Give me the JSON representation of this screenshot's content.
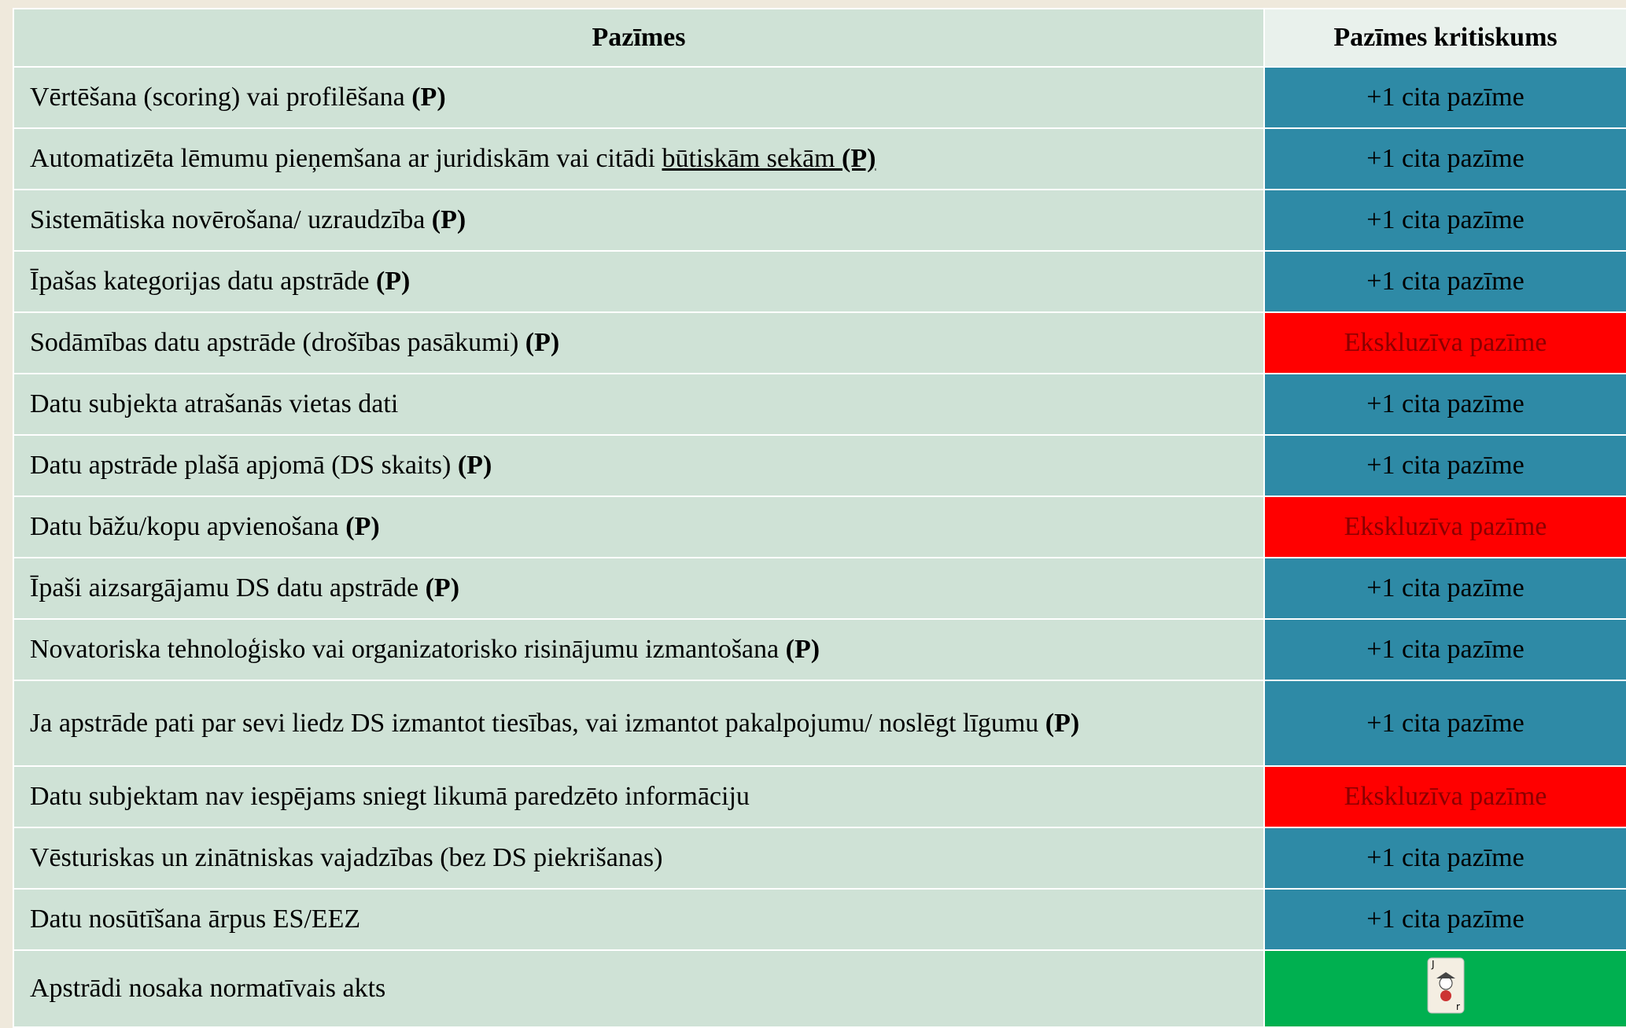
{
  "header": {
    "cells": [
      "Pazīmes",
      "Pazīmes kritiskums"
    ]
  },
  "rows": [
    {
      "parts": [
        {
          "text": "Vērtēšana (scoring) vai profilēšana "
        },
        {
          "text": "(P)",
          "bold": true
        }
      ],
      "criticality": "+1 cita pazīme",
      "fill": "#2e8aa6"
    },
    {
      "parts": [
        {
          "text": "Automatizēta lēmumu pieņemšana ar juridiskām vai citādi "
        },
        {
          "text": "būtiskām sekām ",
          "underline": true
        },
        {
          "text": "(P)",
          "bold": true,
          "underline": true
        }
      ],
      "criticality": "+1 cita pazīme",
      "fill": "#2e8aa6"
    },
    {
      "parts": [
        {
          "text": "Sistemātiska novērošana/ uzraudzība "
        },
        {
          "text": "(P)",
          "bold": true
        }
      ],
      "criticality": "+1 cita pazīme",
      "fill": "#2e8aa6"
    },
    {
      "parts": [
        {
          "text": "Īpašas kategorijas datu apstrāde "
        },
        {
          "text": "(P)",
          "bold": true
        }
      ],
      "criticality": "+1 cita pazīme",
      "fill": "#2e8aa6"
    },
    {
      "parts": [
        {
          "text": "Sodāmības datu apstrāde (drošības pasākumi) "
        },
        {
          "text": "(P)",
          "bold": true
        }
      ],
      "criticality": "Ekskluzīva pazīme",
      "fill": "#ff0000"
    },
    {
      "parts": [
        {
          "text": "Datu subjekta atrašanās vietas dati"
        }
      ],
      "criticality": "+1 cita pazīme",
      "fill": "#2e8aa6"
    },
    {
      "parts": [
        {
          "text": "Datu apstrāde plašā apjomā (DS skaits) "
        },
        {
          "text": "(P)",
          "bold": true
        }
      ],
      "criticality": "+1 cita pazīme",
      "fill": "#2e8aa6"
    },
    {
      "parts": [
        {
          "text": "Datu bāžu/kopu apvienošana "
        },
        {
          "text": "(P)",
          "bold": true
        }
      ],
      "criticality": "Ekskluzīva pazīme",
      "fill": "#ff0000"
    },
    {
      "parts": [
        {
          "text": "Īpaši aizsargājamu DS datu apstrāde "
        },
        {
          "text": "(P)",
          "bold": true
        }
      ],
      "criticality": "+1 cita pazīme",
      "fill": "#2e8aa6"
    },
    {
      "parts": [
        {
          "text": "Novatoriska tehnoloģisko vai organizatorisko risinājumu izmantošana "
        },
        {
          "text": "(P)",
          "bold": true
        }
      ],
      "criticality": "+1 cita pazīme",
      "fill": "#2e8aa6"
    },
    {
      "parts": [
        {
          "text": "Ja apstrāde pati par sevi liedz DS izmantot tiesības, vai izmantot pakalpojumu/ noslēgt līgumu "
        },
        {
          "text": "(P)",
          "bold": true
        }
      ],
      "criticality": "+1 cita pazīme",
      "fill": "#2e8aa6"
    },
    {
      "parts": [
        {
          "text": "Datu subjektam nav iespējams sniegt likumā paredzēto informāciju"
        }
      ],
      "criticality": "Ekskluzīva pazīme",
      "fill": "#ff0000"
    },
    {
      "parts": [
        {
          "text": "Vēsturiskas un zinātniskas vajadzības (bez DS piekrišanas)"
        }
      ],
      "criticality": "+1 cita pazīme",
      "fill": "#2e8aa6"
    },
    {
      "parts": [
        {
          "text": "Datu nosūtīšana ārpus ES/EEZ"
        }
      ],
      "criticality": "+1 cita pazīme",
      "fill": "#2e8aa6"
    },
    {
      "parts": [
        {
          "text": "Apstrādi nosaka normatīvais akts"
        }
      ],
      "fill": "#00b050"
    }
  ]
}
